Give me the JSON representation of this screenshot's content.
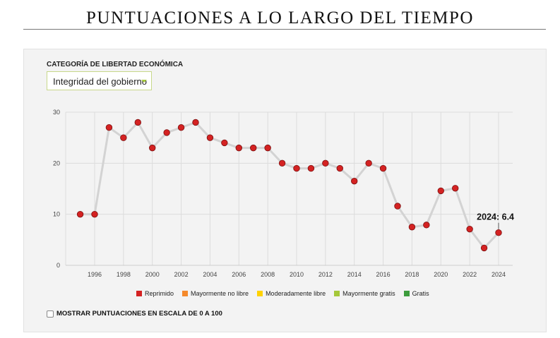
{
  "title": "PUNTUACIONES A LO LARGO DEL TIEMPO",
  "category_label": "CATEGORÍA DE LIBERTAD ECONÓMICA",
  "category_selected": "Integridad del gobierno",
  "checkbox_label": "MOSTRAR PUNTUACIONES EN ESCALA DE 0 A 100",
  "checkbox_checked": false,
  "legend": [
    {
      "label": "Reprimido",
      "color": "#d42222"
    },
    {
      "label": "Mayormente no libre",
      "color": "#f58a2c"
    },
    {
      "label": "Moderadamente libre",
      "color": "#ffd200"
    },
    {
      "label": "Mayormente gratis",
      "color": "#a5c83a"
    },
    {
      "label": "Gratis",
      "color": "#3d9c3d"
    }
  ],
  "chart_data": {
    "type": "line",
    "x": [
      1995,
      1996,
      1997,
      1998,
      1999,
      2000,
      2001,
      2002,
      2003,
      2004,
      2005,
      2006,
      2007,
      2008,
      2009,
      2010,
      2011,
      2012,
      2013,
      2014,
      2015,
      2016,
      2017,
      2018,
      2019,
      2020,
      2021,
      2022,
      2023,
      2024
    ],
    "values": [
      10,
      10,
      27,
      25,
      28,
      23,
      26,
      27,
      28,
      25,
      24,
      23,
      23,
      23,
      20,
      19,
      19,
      20,
      19,
      16.5,
      20,
      19,
      11.6,
      7.5,
      7.9,
      14.6,
      15.1,
      7.1,
      3.4,
      6.4
    ],
    "ylim": [
      0,
      30
    ],
    "yticks": [
      0,
      10,
      20,
      30
    ],
    "xticks": [
      1996,
      1998,
      2000,
      2002,
      2004,
      2006,
      2008,
      2010,
      2012,
      2014,
      2016,
      2018,
      2020,
      2022,
      2024
    ],
    "annotation": "2024: 6.4",
    "point_color": "#d42222",
    "line_color": "#d3d3d3",
    "grid": true
  }
}
